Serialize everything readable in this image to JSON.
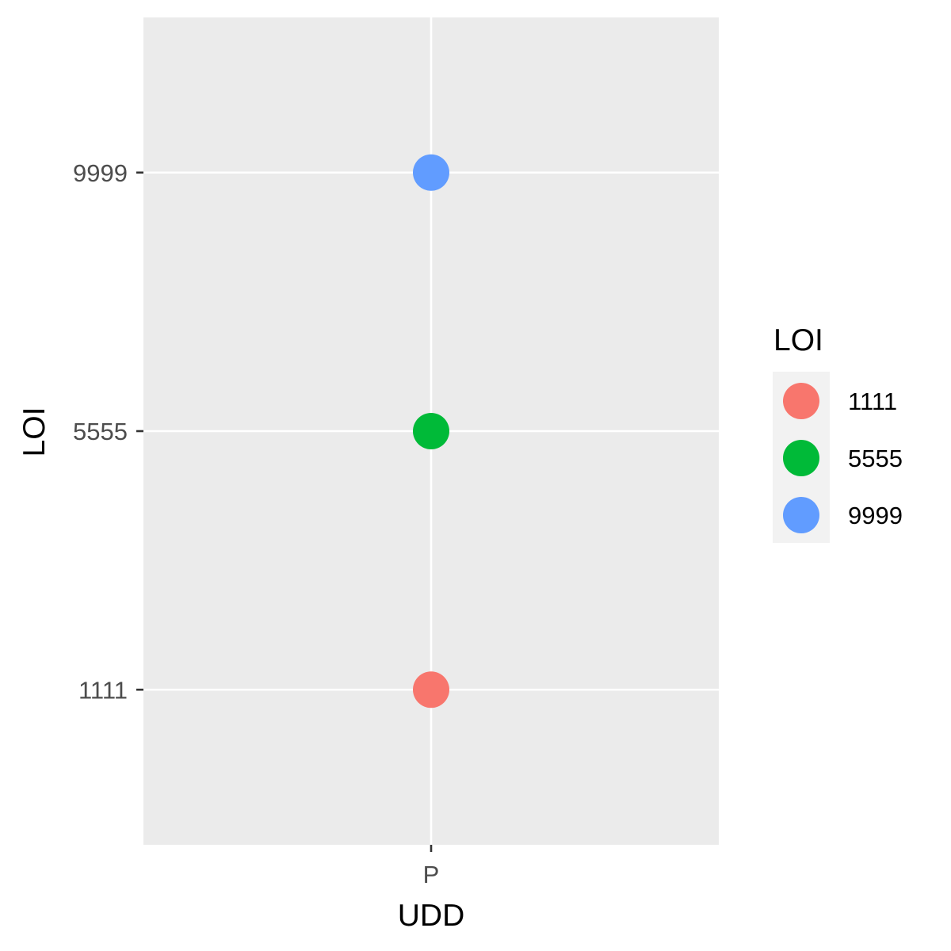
{
  "chart_data": {
    "type": "scatter",
    "xlabel": "UDD",
    "ylabel": "LOI",
    "x_categories": [
      "P"
    ],
    "y_categories": [
      "1111",
      "5555",
      "9999"
    ],
    "points": [
      {
        "x": "P",
        "y": "1111",
        "group": "1111",
        "color": "#F8766D"
      },
      {
        "x": "P",
        "y": "5555",
        "group": "5555",
        "color": "#00BA38"
      },
      {
        "x": "P",
        "y": "9999",
        "group": "9999",
        "color": "#619CFF"
      }
    ],
    "legend": {
      "title": "LOI",
      "placement": "right",
      "entries": [
        {
          "label": "1111",
          "color": "#F8766D"
        },
        {
          "label": "5555",
          "color": "#00BA38"
        },
        {
          "label": "9999",
          "color": "#619CFF"
        }
      ]
    },
    "grid": true,
    "colors": {
      "panel_background": "#EBEBEB",
      "grid_line": "#FFFFFF",
      "legend_key_background": "#F2F2F2",
      "tick_color": "#333333"
    }
  }
}
